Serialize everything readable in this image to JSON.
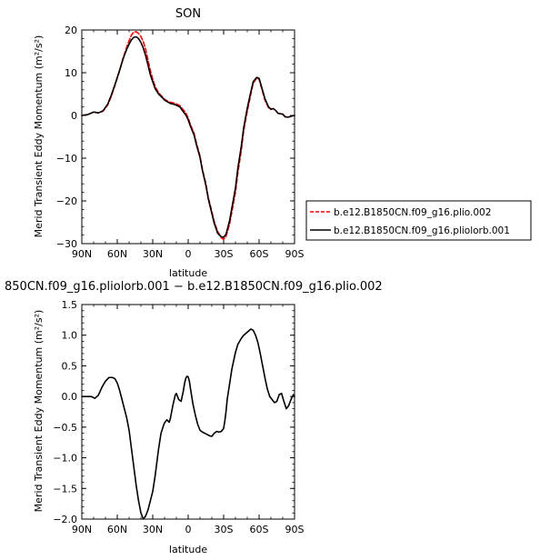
{
  "chart_data": [
    {
      "type": "line",
      "title": "SON",
      "xlabel": "latitude",
      "ylabel": "Merid Transient Eddy Momentum (m²/s²)",
      "xlim": [
        90,
        -90
      ],
      "ylim": [
        -30,
        20
      ],
      "x_ticks": [
        90,
        60,
        30,
        0,
        -30,
        -60,
        -90
      ],
      "x_tick_labels": [
        "90N",
        "60N",
        "30N",
        "0",
        "30S",
        "60S",
        "90S"
      ],
      "y_ticks": [
        -30,
        -20,
        -10,
        0,
        10,
        20
      ],
      "y_tick_labels": [
        "−30",
        "−20",
        "−10",
        "0",
        "10",
        "20"
      ],
      "legend_placement": "outside-right",
      "series": [
        {
          "name": "b.e12.B1850CN.f09_g16.plio.002",
          "color": "#ff0000",
          "dash": "dashed",
          "x": [
            90,
            85,
            80,
            76,
            72,
            68,
            65,
            62,
            58,
            55,
            52,
            50,
            48,
            46,
            44,
            42,
            40,
            38,
            36,
            34,
            32,
            30,
            28,
            25,
            22,
            20,
            17,
            15,
            12,
            10,
            7,
            5,
            2,
            0,
            -2,
            -5,
            -7,
            -10,
            -12,
            -15,
            -17,
            -20,
            -22,
            -25,
            -28,
            -30,
            -32,
            -35,
            -37,
            -40,
            -42,
            -45,
            -47,
            -50,
            -53,
            -55,
            -58,
            -60,
            -62,
            -65,
            -68,
            -70,
            -72,
            -74,
            -76,
            -78,
            -80,
            -82,
            -84,
            -86,
            -88,
            -90
          ],
          "y": [
            0,
            0.2,
            0.8,
            0.6,
            1.0,
            2.5,
            4.5,
            7,
            10.5,
            13.5,
            16,
            17.5,
            18.8,
            19.5,
            19.6,
            19.2,
            18.5,
            17.3,
            15.5,
            13,
            10.5,
            8.5,
            6.8,
            5.3,
            4.4,
            3.8,
            3.3,
            3.1,
            2.9,
            2.7,
            2.3,
            1.6,
            0.6,
            -0.6,
            -2.2,
            -4.2,
            -6.5,
            -9.5,
            -12.5,
            -16,
            -19.2,
            -22.5,
            -24.8,
            -27.2,
            -28.6,
            -29,
            -28.3,
            -25.5,
            -22.5,
            -18,
            -13.5,
            -8,
            -3.5,
            1,
            5,
            7.5,
            8.8,
            8.5,
            6.5,
            3.5,
            1.8,
            1.4,
            1.6,
            1.2,
            0.5,
            0.4,
            0.3,
            -0.3,
            -0.4,
            -0.3,
            -0.1,
            0
          ]
        },
        {
          "name": "b.e12.B1850CN.f09_g16.pliolorb.001",
          "color": "#000000",
          "dash": "solid",
          "x": [
            90,
            85,
            80,
            76,
            72,
            68,
            65,
            62,
            58,
            55,
            52,
            50,
            48,
            46,
            44,
            42,
            40,
            38,
            36,
            34,
            32,
            30,
            28,
            25,
            22,
            20,
            17,
            15,
            12,
            10,
            7,
            5,
            2,
            0,
            -2,
            -5,
            -7,
            -10,
            -12,
            -15,
            -17,
            -20,
            -22,
            -25,
            -28,
            -30,
            -32,
            -35,
            -37,
            -40,
            -42,
            -45,
            -47,
            -50,
            -53,
            -55,
            -58,
            -60,
            -62,
            -65,
            -68,
            -70,
            -72,
            -74,
            -76,
            -78,
            -80,
            -82,
            -84,
            -86,
            -88,
            -90
          ],
          "y": [
            0,
            0.2,
            0.8,
            0.6,
            1.1,
            2.7,
            4.8,
            7.2,
            10.6,
            13.3,
            15.5,
            16.7,
            17.7,
            18.3,
            18.4,
            18.0,
            17.1,
            15.8,
            14.0,
            11.8,
            9.5,
            7.9,
            6.3,
            5.0,
            4.2,
            3.6,
            3.1,
            2.8,
            2.6,
            2.4,
            2.0,
            1.2,
            0.1,
            -1.0,
            -2.6,
            -4.6,
            -6.9,
            -9.8,
            -12.8,
            -16.4,
            -19.5,
            -22.9,
            -25.2,
            -27.6,
            -28.4,
            -28.5,
            -27.8,
            -24.7,
            -21.6,
            -17.0,
            -12.4,
            -7.1,
            -2.8,
            1.7,
            5.5,
            7.9,
            8.9,
            8.7,
            6.8,
            3.9,
            2.0,
            1.5,
            1.6,
            1.2,
            0.5,
            0.4,
            0.3,
            -0.3,
            -0.4,
            -0.3,
            -0.1,
            0
          ]
        }
      ]
    },
    {
      "type": "line",
      "title": "850CN.f09_g16.pliolorb.001 − b.e12.B1850CN.f09_g16.plio.002",
      "xlabel": "latitude",
      "ylabel": "Merid Transient Eddy Momentum (m²/s²)",
      "xlim": [
        90,
        -90
      ],
      "ylim": [
        -2,
        1.5
      ],
      "x_ticks": [
        90,
        60,
        30,
        0,
        -30,
        -60,
        -90
      ],
      "x_tick_labels": [
        "90N",
        "60N",
        "30N",
        "0",
        "30S",
        "60S",
        "90S"
      ],
      "y_ticks": [
        -2,
        -1.5,
        -1,
        -0.5,
        0,
        0.5,
        1,
        1.5
      ],
      "y_tick_labels": [
        "−2.0",
        "−1.5",
        "−1.0",
        "−0.5",
        "0.0",
        "0.5",
        "1.0",
        "1.5"
      ],
      "series": [
        {
          "color": "#000000",
          "dash": "solid",
          "x": [
            90,
            86,
            82,
            79,
            76,
            73,
            70,
            67,
            64,
            62,
            60,
            58,
            56,
            54,
            52,
            50,
            48,
            46,
            44,
            42,
            40,
            38,
            36,
            34,
            32,
            30,
            28,
            26,
            25,
            23,
            21,
            20,
            18,
            16,
            15,
            13,
            11,
            10,
            8,
            6,
            4,
            3,
            2,
            1,
            0,
            -1,
            -2,
            -3,
            -4,
            -6,
            -8,
            -10,
            -12,
            -14,
            -16,
            -18,
            -20,
            -22,
            -24,
            -26,
            -28,
            -30,
            -31,
            -32,
            -33,
            -35,
            -37,
            -40,
            -42,
            -45,
            -47,
            -50,
            -53,
            -55,
            -57,
            -59,
            -61,
            -63,
            -65,
            -67,
            -69,
            -71,
            -73,
            -75,
            -77,
            -79,
            -81,
            -83,
            -85,
            -87,
            -89,
            -90
          ],
          "y": [
            0,
            0,
            0,
            -0.03,
            0.02,
            0.15,
            0.25,
            0.31,
            0.31,
            0.29,
            0.22,
            0.1,
            -0.05,
            -0.2,
            -0.35,
            -0.55,
            -0.85,
            -1.15,
            -1.45,
            -1.7,
            -1.9,
            -2.0,
            -1.95,
            -1.85,
            -1.7,
            -1.55,
            -1.3,
            -1.0,
            -0.85,
            -0.6,
            -0.48,
            -0.43,
            -0.38,
            -0.42,
            -0.35,
            -0.15,
            0.02,
            0.05,
            -0.05,
            -0.08,
            0.1,
            0.22,
            0.3,
            0.33,
            0.32,
            0.25,
            0.12,
            0.0,
            -0.12,
            -0.3,
            -0.45,
            -0.55,
            -0.58,
            -0.6,
            -0.62,
            -0.64,
            -0.65,
            -0.6,
            -0.57,
            -0.58,
            -0.57,
            -0.52,
            -0.4,
            -0.25,
            -0.05,
            0.2,
            0.45,
            0.72,
            0.85,
            0.95,
            1.0,
            1.05,
            1.1,
            1.08,
            1.0,
            0.88,
            0.7,
            0.5,
            0.3,
            0.12,
            0.0,
            -0.05,
            -0.1,
            -0.08,
            0.03,
            0.05,
            -0.08,
            -0.2,
            -0.15,
            -0.05,
            0.03,
            0
          ]
        }
      ]
    }
  ]
}
